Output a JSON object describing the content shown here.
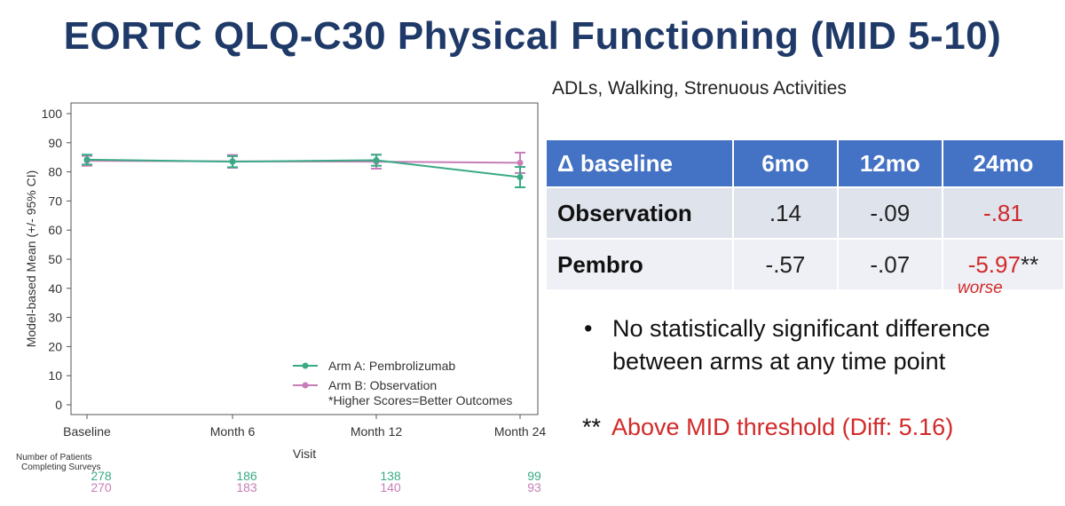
{
  "title": "EORTC QLQ-C30 Physical Functioning (MID 5-10)",
  "subtitle": "ADLs, Walking, Strenuous Activities",
  "chart_data": {
    "type": "line",
    "xlabel": "Visit",
    "ylabel": "Model-based Mean (+/- 95% CI)",
    "ylim": [
      0,
      100
    ],
    "yticks": [
      0,
      10,
      20,
      30,
      40,
      50,
      60,
      70,
      80,
      90,
      100
    ],
    "categories": [
      "Baseline",
      "Month 6",
      "Month 12",
      "Month 24"
    ],
    "series": [
      {
        "name": "Arm A: Pembrolizumab",
        "color": "#3aaa86",
        "values": [
          84.2,
          83.5,
          84,
          78.2
        ],
        "ci_low": [
          82.5,
          81.6,
          82.1,
          74.7
        ],
        "ci_high": [
          85.9,
          85.4,
          85.9,
          81.7
        ]
      },
      {
        "name": "Arm B: Observation",
        "color": "#c77db8",
        "values": [
          83.8,
          83.6,
          83.5,
          83.1
        ],
        "ci_low": [
          82.1,
          81.4,
          81.1,
          79.6
        ],
        "ci_high": [
          85.5,
          85.8,
          85.9,
          86.6
        ]
      }
    ],
    "legend_position": "bottom-right",
    "legend_note": "*Higher Scores=Better Outcomes",
    "patients_label_line1": "Number of Patients",
    "patients_label_line2": "Completing Surveys",
    "patients_counts": {
      "arm_a": [
        "278",
        "186",
        "138",
        "99"
      ],
      "arm_b": [
        "270",
        "183",
        "140",
        "93"
      ]
    }
  },
  "table": {
    "header": [
      "Δ baseline",
      "6mo",
      "12mo",
      "24mo"
    ],
    "rows": [
      {
        "label": "Observation",
        "v6": ".14",
        "v12": "-.09",
        "v24": "-.81",
        "v24_suffix": ""
      },
      {
        "label": "Pembro",
        "v6": "-.57",
        "v12": "-.07",
        "v24": "-5.97",
        "v24_suffix": "**"
      }
    ],
    "annotation": "worse",
    "accent_color": "#d12a2a",
    "header_color": "#4472c4"
  },
  "bullet": {
    "marker": "•",
    "text": "No statistically significant difference between arms at any time point"
  },
  "note": {
    "prefix": "**",
    "text": "Above MID threshold (Diff: 5.16)"
  }
}
